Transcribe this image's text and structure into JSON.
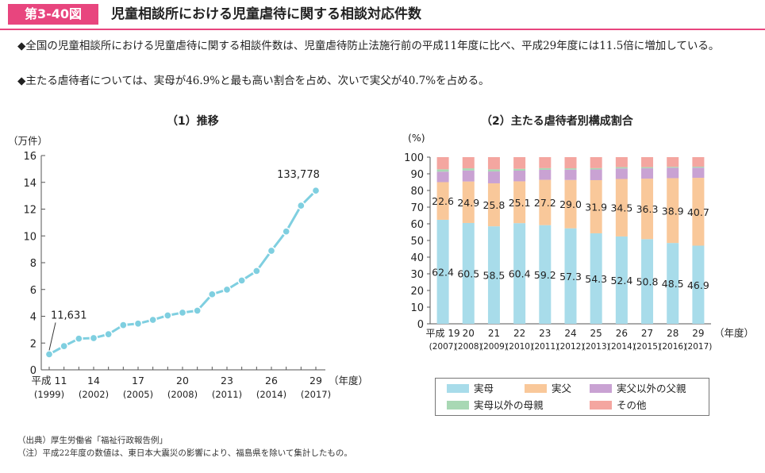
{
  "header": {
    "badge": "第3-40図",
    "title": "児童相談所における児童虐待に関する相談対応件数"
  },
  "summary": {
    "bullet_mark": "◆",
    "line1": "全国の児童相談所における児童虐待に関する相談件数は、児童虐待防止法施行前の平成11年度に比べ、平成29年度には11.5倍に増加している。",
    "line2": "主たる虐待者については、実母が46.9%と最も高い割合を占め、次いで実父が40.7%を占める。"
  },
  "colors": {
    "accent": "#e8457e",
    "line": "#7fcfe0",
    "jitsubo": "#a8dcea",
    "jitsufu": "#f9c89a",
    "fusei": "#c9a2d3",
    "bosei": "#a8d8b4",
    "other": "#f4a6a0"
  },
  "chart_data": [
    {
      "type": "line",
      "title": "（1）推移",
      "ylabel": "（万件）",
      "xlabel": "（年度）",
      "ylim": [
        0,
        16
      ],
      "yticks": [
        "0",
        "2",
        "4",
        "6",
        "8",
        "10",
        "12",
        "14",
        "16"
      ],
      "x": [
        11,
        12,
        13,
        14,
        15,
        16,
        17,
        18,
        19,
        20,
        21,
        22,
        23,
        24,
        25,
        26,
        27,
        28,
        29
      ],
      "values": [
        1.16,
        1.77,
        2.33,
        2.37,
        2.66,
        3.34,
        3.45,
        3.73,
        4.06,
        4.27,
        4.42,
        5.64,
        5.99,
        6.67,
        7.38,
        8.89,
        10.33,
        12.26,
        13.38
      ],
      "xtick_labels": [
        {
          "x": 11,
          "top": "平成 11",
          "bottom": "(1999)"
        },
        {
          "x": 14,
          "top": "14",
          "bottom": "(2002)"
        },
        {
          "x": 17,
          "top": "17",
          "bottom": "(2005)"
        },
        {
          "x": 20,
          "top": "20",
          "bottom": "(2008)"
        },
        {
          "x": 23,
          "top": "23",
          "bottom": "(2011)"
        },
        {
          "x": 26,
          "top": "26",
          "bottom": "(2014)"
        },
        {
          "x": 29,
          "top": "29",
          "bottom": "(2017)"
        }
      ],
      "annotations": [
        {
          "x": 11,
          "text": "11,631"
        },
        {
          "x": 29,
          "text": "133,778"
        }
      ]
    },
    {
      "type": "bar",
      "stacked": true,
      "title": "（2）主たる虐待者別構成割合",
      "ylabel": "(%)",
      "xlabel": "（年度）",
      "ylim": [
        0,
        100
      ],
      "yticks": [
        "0",
        "10",
        "20",
        "30",
        "40",
        "50",
        "60",
        "70",
        "80",
        "90",
        "100"
      ],
      "categories": [
        "平成 19",
        "20",
        "21",
        "22",
        "23",
        "24",
        "25",
        "26",
        "27",
        "28",
        "29"
      ],
      "category_years": [
        "(2007)",
        "(2008)",
        "(2009)",
        "(2010)",
        "(2011)",
        "(2012)",
        "(2013)",
        "(2014)",
        "(2015)",
        "(2016)",
        "(2017)"
      ],
      "series": [
        {
          "name": "実母",
          "color": "#a8dcea",
          "values": [
            62.4,
            60.5,
            58.5,
            60.4,
            59.2,
            57.3,
            54.3,
            52.4,
            50.8,
            48.5,
            46.9
          ],
          "labels": [
            "62.4",
            "60.5",
            "58.5",
            "60.4",
            "59.2",
            "57.3",
            "54.3",
            "52.4",
            "50.8",
            "48.5",
            "46.9"
          ]
        },
        {
          "name": "実父",
          "color": "#f9c89a",
          "values": [
            22.6,
            24.9,
            25.8,
            25.1,
            27.2,
            29.0,
            31.9,
            34.5,
            36.3,
            38.9,
            40.7
          ],
          "labels": [
            "22.6",
            "24.9",
            "25.8",
            "25.1",
            "27.2",
            "29.0",
            "31.9",
            "34.5",
            "36.3",
            "38.9",
            "40.7"
          ]
        },
        {
          "name": "実父以外の父親",
          "color": "#c9a2d3",
          "values": [
            6.3,
            6.6,
            7.1,
            6.4,
            6.0,
            6.2,
            6.4,
            6.3,
            6.2,
            6.2,
            6.1
          ]
        },
        {
          "name": "実母以外の母親",
          "color": "#a8d8b4",
          "values": [
            1.4,
            1.3,
            1.3,
            1.1,
            1.0,
            0.8,
            0.8,
            0.8,
            0.7,
            0.6,
            0.6
          ]
        },
        {
          "name": "その他",
          "color": "#f4a6a0",
          "values": [
            7.3,
            6.7,
            7.3,
            7.0,
            6.6,
            6.7,
            6.6,
            6.0,
            6.0,
            5.8,
            5.7
          ]
        }
      ]
    }
  ],
  "legend": [
    {
      "label": "実母",
      "color": "#a8dcea"
    },
    {
      "label": "実父",
      "color": "#f9c89a"
    },
    {
      "label": "実父以外の父親",
      "color": "#c9a2d3"
    },
    {
      "label": "実母以外の母親",
      "color": "#a8d8b4"
    },
    {
      "label": "その他",
      "color": "#f4a6a0"
    }
  ],
  "notes": {
    "source": "（出典）厚生労働省「福祉行政報告例」",
    "note": "（注）平成22年度の数値は、東日本大震災の影響により、福島県を除いて集計したもの。"
  }
}
